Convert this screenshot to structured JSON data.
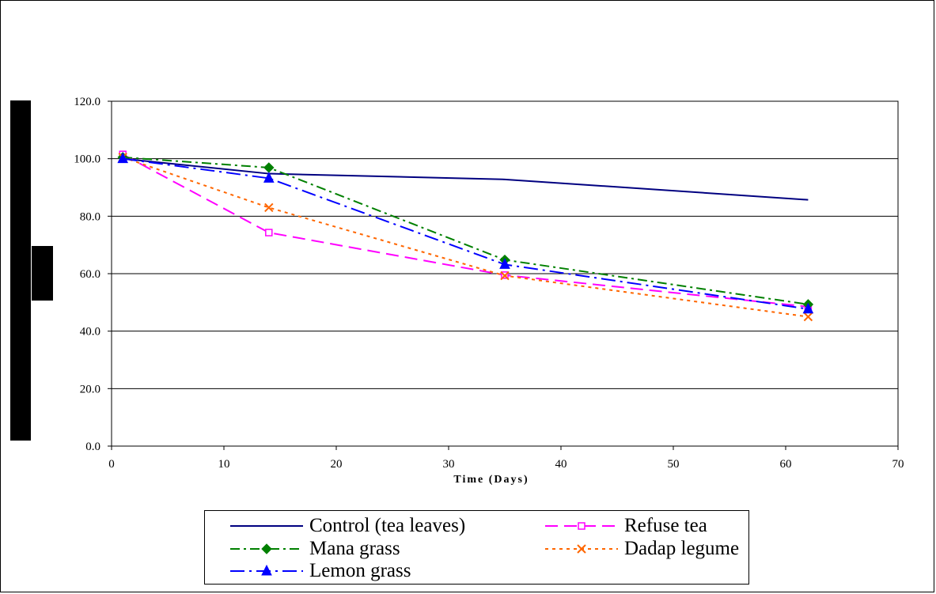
{
  "chart_data": {
    "type": "line",
    "title": "",
    "xlabel": "Time (Days)",
    "ylabel": "",
    "xlim": [
      0,
      70
    ],
    "ylim": [
      0,
      120
    ],
    "x_ticks": [
      "0",
      "10",
      "20",
      "30",
      "40",
      "50",
      "60",
      "70"
    ],
    "y_ticks": [
      "0.0",
      "20.0",
      "40.0",
      "60.0",
      "80.0",
      "100.0",
      "120.0"
    ],
    "grid": "horizontal",
    "legend_position": "bottom",
    "series": [
      {
        "name": "Control (tea leaves)",
        "color": "#000080",
        "dash": "solid",
        "marker": "none",
        "x": [
          1,
          14,
          35,
          62
        ],
        "y": [
          100,
          94.8,
          92.8,
          85.7
        ]
      },
      {
        "name": "Refuse tea",
        "color": "#ff00ff",
        "dash": "dash",
        "marker": "square",
        "x": [
          1,
          14,
          35,
          62
        ],
        "y": [
          101.5,
          74.3,
          59.5,
          48.5
        ]
      },
      {
        "name": "Mana grass",
        "color": "#008000",
        "dash": "dashdot",
        "marker": "diamond",
        "x": [
          1,
          14,
          35,
          62
        ],
        "y": [
          100.5,
          96.9,
          64.8,
          49.3
        ]
      },
      {
        "name": "Dadap legume",
        "color": "#ff6600",
        "dash": "dot",
        "marker": "x",
        "x": [
          1,
          14,
          35,
          62
        ],
        "y": [
          100.5,
          83.0,
          59.3,
          45.0
        ]
      },
      {
        "name": "Lemon grass",
        "color": "#0000ff",
        "dash": "dashdotlong",
        "marker": "triangle",
        "x": [
          1,
          14,
          35,
          62
        ],
        "y": [
          100,
          93.2,
          63.2,
          47.7
        ]
      }
    ]
  }
}
